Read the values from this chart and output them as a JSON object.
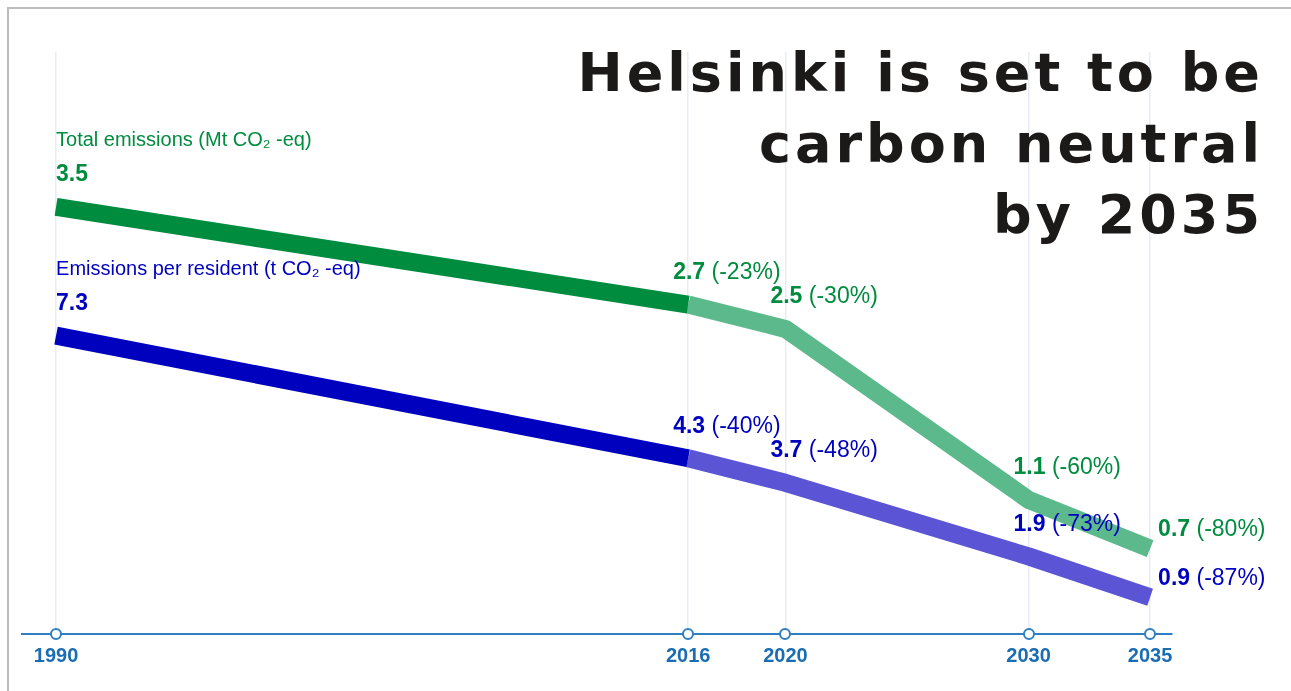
{
  "chart_data": {
    "type": "line",
    "title": "Helsinki is set to be\ncarbon neutral\nby 2035",
    "xlim": [
      1988.6,
      2035.9
    ],
    "xticks": [
      1990,
      2016,
      2020,
      2030,
      2035
    ],
    "ylim": [
      0,
      4.77
    ],
    "y2lim": [
      0,
      14.24
    ],
    "tick_labels": "x",
    "grid": "x",
    "series": [
      {
        "name": "Total emissions (Mt CO₂ -eq)",
        "color": "#008c3f",
        "x": [
          1990,
          2016
        ],
        "values": [
          3.5,
          2.7
        ],
        "value_labels": [
          "3.5",
          "2.7 (-23%)"
        ]
      },
      {
        "color": "#5bb98b",
        "x": [
          2016,
          2020,
          2030,
          2035
        ],
        "values": [
          2.7,
          2.5,
          1.1,
          0.7
        ],
        "value_labels": [
          null,
          "2.5 (-30%)",
          "1.1 (-60%)",
          "0.7 (-80%)"
        ]
      },
      {
        "name": "Emissions per resident (t CO₂ -eq)",
        "color": "#0000bf",
        "axis": "y2",
        "x": [
          1990,
          2016
        ],
        "values": [
          7.3,
          4.3
        ],
        "value_labels": [
          "7.3",
          "4.3 (-40%)"
        ]
      },
      {
        "color": "#5b55d5",
        "axis": "y2",
        "x": [
          2016,
          2020,
          2030,
          2035
        ],
        "values": [
          4.3,
          3.7,
          1.9,
          0.9
        ],
        "value_labels": [
          null,
          "3.7 (-48%)",
          "1.9 (-73%)",
          "0.9 (-87%)"
        ]
      }
    ]
  }
}
